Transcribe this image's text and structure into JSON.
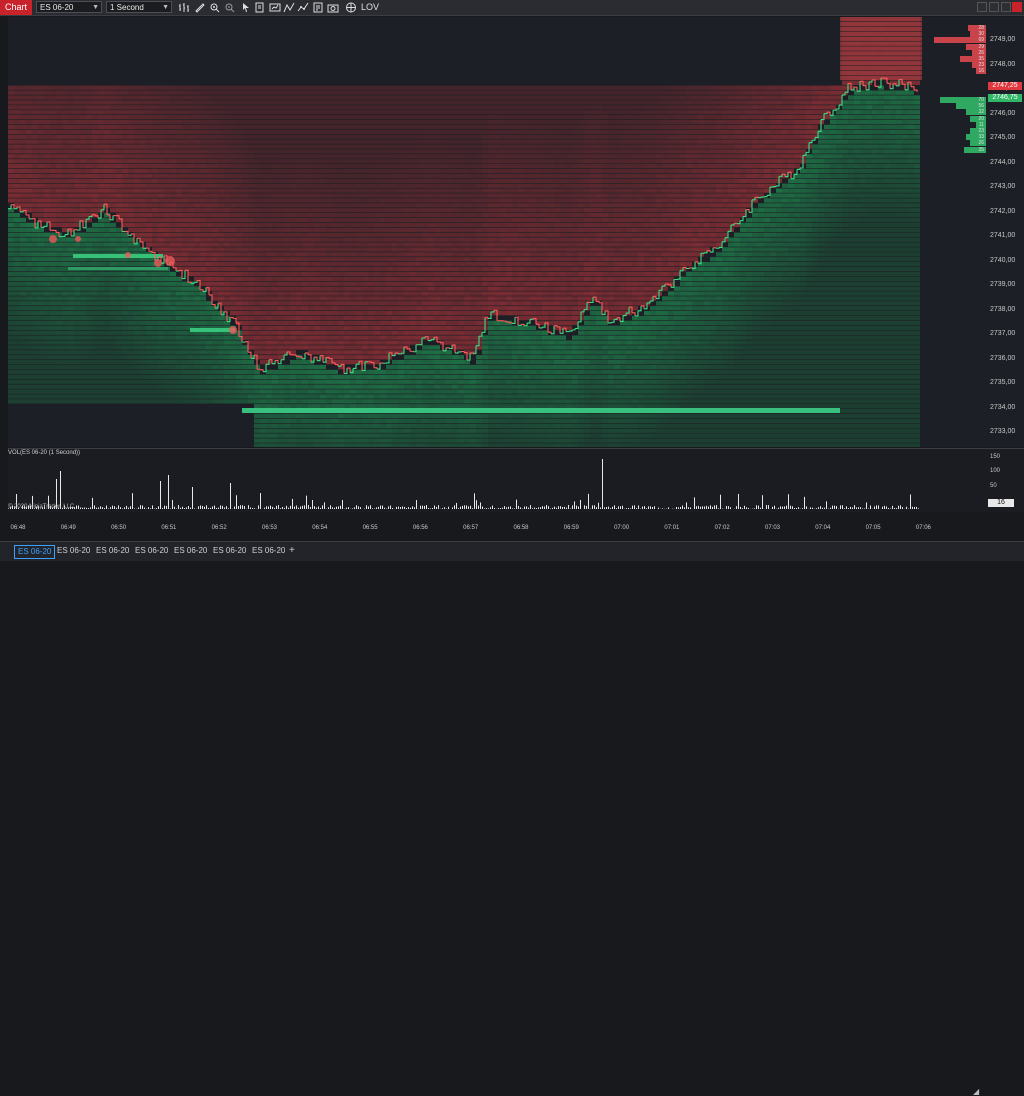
{
  "toolbar": {
    "chart_tab": "Chart",
    "instrument": "ES 06-20",
    "interval": "1 Second",
    "lov_label": "LOV",
    "icons": [
      "bars-icon",
      "draw-icon",
      "zoom-in-icon",
      "zoom-out-icon",
      "cursor-icon",
      "properties-icon",
      "strategies-icon",
      "indicators-icon",
      "chart-style-icon",
      "attach-icon",
      "snapshot-icon",
      "template-icon",
      "lov-icon"
    ]
  },
  "price_axis": {
    "labels": [
      "2749,00",
      "2748,00",
      "2747,00",
      "2746,00",
      "2745,00",
      "2744,00",
      "2743,00",
      "2742,00",
      "2741,00",
      "2740,00",
      "2739,00",
      "2738,00",
      "2737,00",
      "2736,00",
      "2735,00",
      "2734,00",
      "2733,00"
    ],
    "ask_tag": "2747,25",
    "bid_tag": "2746,75",
    "ask_tag_color": "#e0383e",
    "bid_tag_color": "#2fb765"
  },
  "dom": {
    "asks": [
      "28",
      "30",
      "69",
      "29",
      "26",
      "35",
      "23",
      "16"
    ],
    "bids": [
      "70",
      "56",
      "32",
      "20",
      "11",
      "23",
      "33",
      "26",
      "35"
    ]
  },
  "volume": {
    "title": "VOL(ES 06-20 (1 Second))",
    "copyright": "© 2020 NinjaTrader, LLC",
    "axis_labels": [
      "150",
      "100",
      "50"
    ],
    "current_tag": "16"
  },
  "time_axis": [
    "06:48",
    "06:49",
    "06:50",
    "06:51",
    "06:52",
    "06:53",
    "06:54",
    "06:55",
    "06:56",
    "06:57",
    "06:58",
    "06:59",
    "07:00",
    "07:01",
    "07:02",
    "07:03",
    "07:04",
    "07:05",
    "07:06"
  ],
  "bottom_tabs": [
    "ES 06-20",
    "ES 06-20",
    "ES 06-20",
    "ES 06-20",
    "ES 06-20",
    "ES 06-20",
    "ES 06-20"
  ],
  "colors": {
    "ask_heat": "#8c2f36",
    "bid_heat": "#1f7a4a",
    "up_tick": "#3ddc84",
    "down_tick": "#ff5a5a",
    "background": "#1c1f25"
  }
}
